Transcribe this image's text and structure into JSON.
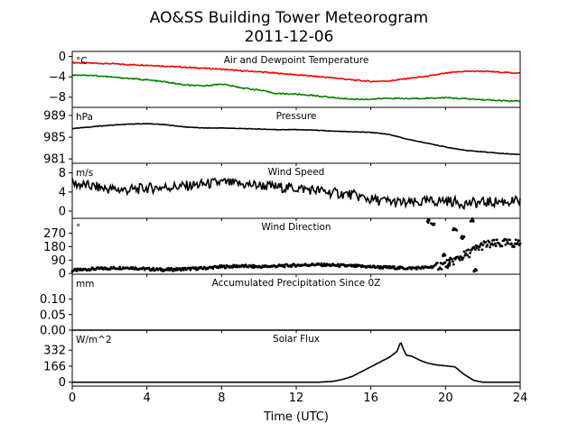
{
  "figure": {
    "title_line1": "AO&SS Building Tower Meteorogram",
    "title_line2": "2011-12-06",
    "xlabel": "Time (UTC)"
  },
  "chart_data": [
    {
      "type": "line",
      "id": "temp",
      "title": "Air and Dewpoint Temperature",
      "unit_label": "°C",
      "x_range": [
        0,
        24
      ],
      "ylim": [
        -10,
        1
      ],
      "yticks": [
        0,
        -4,
        -8
      ],
      "ytick_labels": [
        "0",
        "−4",
        "−8"
      ],
      "series": [
        {
          "color": "#ff0000",
          "x": [
            0,
            1,
            2,
            3,
            4,
            5,
            6,
            7,
            8,
            9,
            10,
            11,
            12,
            13,
            14,
            15,
            16,
            17,
            18,
            19,
            20,
            21,
            22,
            23,
            24
          ],
          "values": [
            -1.2,
            -1.3,
            -1.4,
            -1.6,
            -1.7,
            -1.9,
            -2.1,
            -2.3,
            -2.5,
            -2.8,
            -3.0,
            -3.3,
            -3.6,
            -3.9,
            -4.2,
            -4.6,
            -4.9,
            -4.8,
            -4.3,
            -3.9,
            -3.3,
            -2.9,
            -2.9,
            -3.1,
            -3.3
          ]
        },
        {
          "color": "#008000",
          "x": [
            0,
            1,
            2,
            3,
            4,
            5,
            6,
            7,
            8,
            9,
            10,
            11,
            12,
            13,
            14,
            15,
            16,
            17,
            18,
            19,
            20,
            21,
            22,
            23,
            24
          ],
          "values": [
            -3.6,
            -3.7,
            -4.0,
            -4.3,
            -4.6,
            -5.0,
            -5.6,
            -5.8,
            -5.4,
            -6.1,
            -6.6,
            -7.3,
            -7.4,
            -7.7,
            -8.1,
            -8.4,
            -8.4,
            -8.2,
            -8.3,
            -8.2,
            -8.1,
            -8.3,
            -8.5,
            -8.7,
            -8.8
          ]
        }
      ]
    },
    {
      "type": "line",
      "id": "pressure",
      "title": "Pressure",
      "unit_label": "hPa",
      "x_range": [
        0,
        24
      ],
      "ylim": [
        980.2,
        990.5
      ],
      "yticks": [
        989,
        985,
        981
      ],
      "ytick_labels": [
        "989",
        "985",
        "981"
      ],
      "series": [
        {
          "color": "#000000",
          "x": [
            0,
            1,
            2,
            3,
            4,
            5,
            6,
            7,
            8,
            9,
            10,
            11,
            12,
            13,
            14,
            15,
            16,
            17,
            18,
            19,
            20,
            21,
            22,
            23,
            24
          ],
          "values": [
            986.6,
            986.9,
            987.2,
            987.4,
            987.5,
            987.3,
            986.9,
            986.7,
            986.7,
            986.6,
            986.5,
            986.4,
            986.4,
            986.3,
            986.1,
            986.0,
            985.9,
            985.5,
            984.6,
            983.9,
            983.2,
            982.6,
            982.3,
            982.0,
            981.8
          ]
        }
      ]
    },
    {
      "type": "line",
      "id": "wind_speed",
      "title": "Wind Speed",
      "unit_label": "m/s",
      "x_range": [
        0,
        24
      ],
      "ylim": [
        -1.5,
        10
      ],
      "yticks": [
        8,
        4,
        0
      ],
      "ytick_labels": [
        "8",
        "4",
        "0"
      ],
      "series": [
        {
          "color": "#000000",
          "x": [
            0,
            1,
            2,
            3,
            4,
            5,
            6,
            7,
            8,
            9,
            10,
            11,
            12,
            13,
            14,
            15,
            16,
            17,
            18,
            19,
            20,
            21,
            22,
            23,
            24
          ],
          "values": [
            5.8,
            5.2,
            4.6,
            4.4,
            4.8,
            5.0,
            5.2,
            5.6,
            6.0,
            5.6,
            5.4,
            5.0,
            4.8,
            4.4,
            3.8,
            3.4,
            2.4,
            2.0,
            1.6,
            2.0,
            2.2,
            1.6,
            1.8,
            2.0,
            2.0
          ]
        }
      ]
    },
    {
      "type": "scatter",
      "id": "wind_direction",
      "title": "Wind Direction",
      "unit_label": "°",
      "x_range": [
        0,
        24
      ],
      "ylim": [
        -5,
        370
      ],
      "yticks": [
        270,
        180,
        90,
        0
      ],
      "ytick_labels": [
        "270",
        "180",
        "90",
        "0"
      ],
      "series": [
        {
          "color": "#000000",
          "x": [
            0,
            1,
            2,
            3,
            4,
            5,
            6,
            7,
            8,
            9,
            10,
            11,
            12,
            13,
            14,
            15,
            16,
            17,
            18,
            19,
            20,
            21,
            22,
            23,
            24
          ],
          "values": [
            20,
            30,
            35,
            40,
            30,
            25,
            30,
            35,
            45,
            50,
            45,
            50,
            55,
            60,
            55,
            50,
            45,
            40,
            35,
            40,
            60,
            120,
            190,
            200,
            205
          ]
        },
        {
          "color": "#000000",
          "x": [
            19.1,
            19.3,
            19.9,
            20.2,
            20.5,
            20.9,
            21.4,
            21.6
          ],
          "values": [
            350,
            330,
            130,
            60,
            290,
            240,
            360,
            20
          ]
        }
      ]
    },
    {
      "type": "line",
      "id": "precip",
      "title": "Accumulated Precipitation Since 0Z",
      "unit_label": "mm",
      "x_range": [
        0,
        24
      ],
      "ylim": [
        0,
        0.18
      ],
      "yticks": [
        0.1,
        0.05,
        0.0
      ],
      "ytick_labels": [
        "0.10",
        "0.05",
        "0.00"
      ],
      "series": [
        {
          "color": "#000000",
          "x": [
            0,
            24
          ],
          "values": [
            0,
            0
          ]
        }
      ]
    },
    {
      "type": "line",
      "id": "solar",
      "title": "Solar Flux",
      "unit_label": "W/m^2",
      "x_range": [
        0,
        24
      ],
      "ylim": [
        -40,
        540
      ],
      "yticks": [
        332,
        166,
        0
      ],
      "ytick_labels": [
        "332",
        "166",
        "0"
      ],
      "xticks": [
        0,
        4,
        8,
        12,
        16,
        20,
        24
      ],
      "xtick_labels": [
        "0",
        "4",
        "8",
        "12",
        "16",
        "20",
        "24"
      ],
      "series": [
        {
          "color": "#000000",
          "x": [
            0,
            13.2,
            14,
            14.5,
            15,
            15.5,
            16,
            16.5,
            17,
            17.4,
            17.6,
            17.7,
            17.9,
            18.2,
            18.6,
            19,
            19.5,
            20,
            20.5,
            21,
            21.5,
            22,
            23,
            24
          ],
          "values": [
            0,
            0,
            10,
            30,
            60,
            110,
            160,
            210,
            260,
            320,
            420,
            360,
            280,
            270,
            230,
            200,
            180,
            170,
            160,
            80,
            20,
            0,
            0,
            0
          ]
        }
      ]
    }
  ]
}
